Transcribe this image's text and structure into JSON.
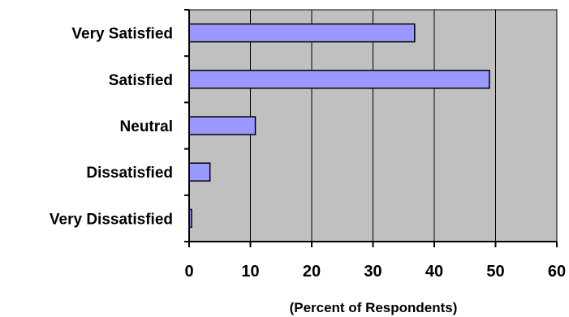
{
  "chart_data": {
    "type": "bar",
    "orientation": "horizontal",
    "title": "",
    "xlabel": "(Percent of Respondents)",
    "ylabel": "",
    "categories": [
      "Very Satisfied",
      "Satisfied",
      "Neutral",
      "Dissatisfied",
      "Very Dissatisfied"
    ],
    "values": [
      36.8,
      49.0,
      10.8,
      3.4,
      0.4
    ],
    "xlim": [
      0,
      60
    ],
    "xticks": [
      0,
      10,
      20,
      30,
      40,
      50,
      60
    ],
    "tick_labels": [
      "0",
      "10",
      "20",
      "30",
      "40",
      "50",
      "60"
    ],
    "grid": "vertical",
    "legend": "none",
    "colors": {
      "bar_fill": "#9999ff",
      "bar_stroke": "#000000",
      "plot_background": "#c0c0c0",
      "gridline": "#000000"
    }
  }
}
